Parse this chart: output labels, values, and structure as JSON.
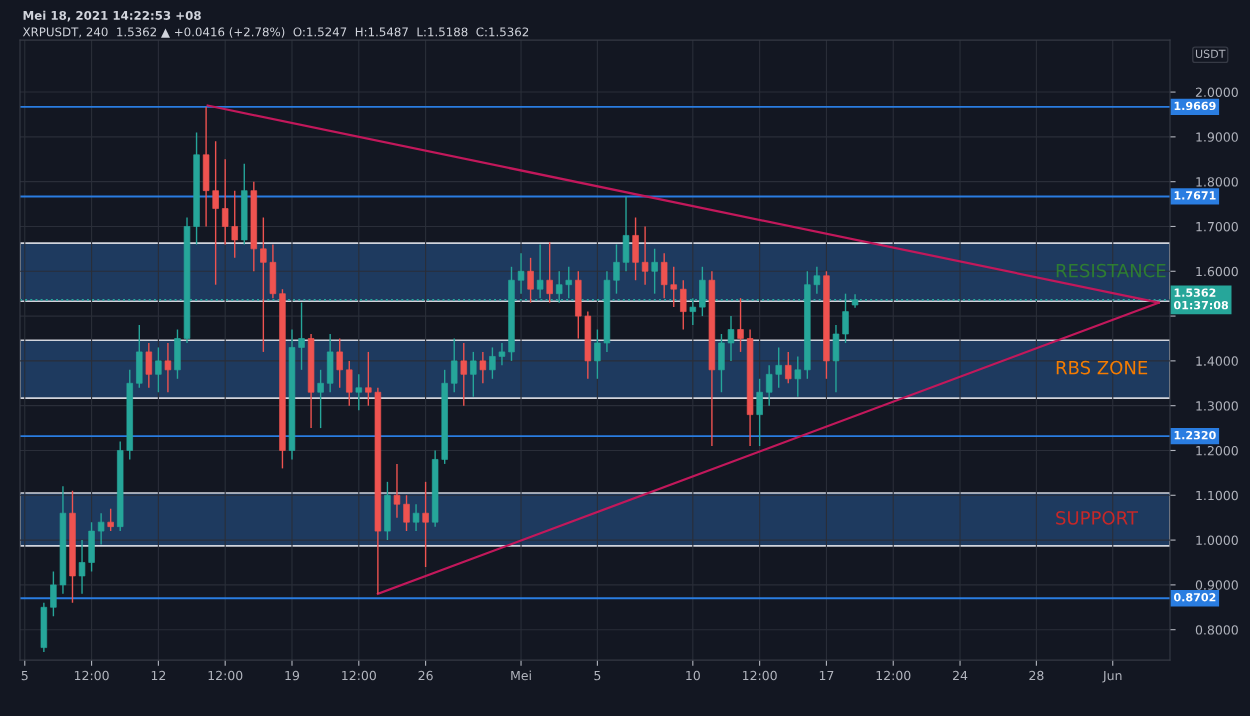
{
  "chart_data": {
    "type": "candlestick",
    "title": "Mei 18, 2021 14:22:53 +08",
    "subtitle": "XRPUSDT, 240  1.5362 ▲ +0.0416 (+2.78%)  O:1.5247  H:1.5487  L:1.5188  C:1.5362",
    "ylabel": "USDT",
    "x": [
      "2021-04-06T00:00",
      "2021-04-06T12:00",
      "2021-04-07T00:00",
      "2021-04-07T12:00",
      "2021-04-08T00:00",
      "2021-04-08T12:00",
      "2021-04-09T00:00",
      "2021-04-09T12:00",
      "2021-04-10T00:00",
      "2021-04-10T12:00",
      "2021-04-11T00:00",
      "2021-04-11T12:00",
      "2021-04-12T00:00",
      "2021-04-12T12:00",
      "2021-04-13T00:00",
      "2021-04-13T12:00",
      "2021-04-14T00:00",
      "2021-04-14T12:00",
      "2021-04-15T00:00",
      "2021-04-15T12:00",
      "2021-04-16T00:00",
      "2021-04-16T12:00",
      "2021-04-17T00:00",
      "2021-04-17T12:00",
      "2021-04-18T00:00",
      "2021-04-18T12:00",
      "2021-04-19T00:00",
      "2021-04-19T12:00",
      "2021-04-20T00:00",
      "2021-04-20T12:00",
      "2021-04-21T00:00",
      "2021-04-21T12:00",
      "2021-04-22T00:00",
      "2021-04-22T12:00",
      "2021-04-23T00:00",
      "2021-04-23T12:00",
      "2021-04-24T00:00",
      "2021-04-24T12:00",
      "2021-04-25T00:00",
      "2021-04-25T12:00",
      "2021-04-26T00:00",
      "2021-04-26T12:00",
      "2021-04-27T00:00",
      "2021-04-27T12:00",
      "2021-04-28T00:00",
      "2021-04-28T12:00",
      "2021-04-29T00:00",
      "2021-04-29T12:00",
      "2021-04-30T00:00",
      "2021-04-30T12:00",
      "2021-05-01T00:00",
      "2021-05-01T12:00",
      "2021-05-02T00:00",
      "2021-05-02T12:00",
      "2021-05-03T00:00",
      "2021-05-03T12:00",
      "2021-05-04T00:00",
      "2021-05-04T12:00",
      "2021-05-05T00:00",
      "2021-05-05T12:00",
      "2021-05-06T00:00",
      "2021-05-06T12:00",
      "2021-05-07T00:00",
      "2021-05-07T12:00",
      "2021-05-08T00:00",
      "2021-05-08T12:00",
      "2021-05-09T00:00",
      "2021-05-09T12:00",
      "2021-05-10T00:00",
      "2021-05-10T12:00",
      "2021-05-11T00:00",
      "2021-05-11T12:00",
      "2021-05-12T00:00",
      "2021-05-12T12:00",
      "2021-05-13T00:00",
      "2021-05-13T12:00",
      "2021-05-14T00:00",
      "2021-05-14T12:00",
      "2021-05-15T00:00",
      "2021-05-15T12:00",
      "2021-05-16T00:00",
      "2021-05-16T12:00",
      "2021-05-17T00:00",
      "2021-05-17T12:00",
      "2021-05-18T00:00",
      "2021-05-18T12:00"
    ],
    "ohlc": [
      [
        0.76,
        0.86,
        0.75,
        0.85
      ],
      [
        0.85,
        0.93,
        0.83,
        0.9
      ],
      [
        0.9,
        1.12,
        0.88,
        1.06
      ],
      [
        1.06,
        1.11,
        0.86,
        0.92
      ],
      [
        0.92,
        1.0,
        0.88,
        0.95
      ],
      [
        0.95,
        1.04,
        0.93,
        1.02
      ],
      [
        1.02,
        1.06,
        0.99,
        1.04
      ],
      [
        1.04,
        1.07,
        1.02,
        1.03
      ],
      [
        1.03,
        1.22,
        1.02,
        1.2
      ],
      [
        1.2,
        1.38,
        1.18,
        1.35
      ],
      [
        1.35,
        1.48,
        1.34,
        1.42
      ],
      [
        1.42,
        1.44,
        1.34,
        1.37
      ],
      [
        1.37,
        1.43,
        1.33,
        1.4
      ],
      [
        1.4,
        1.44,
        1.33,
        1.38
      ],
      [
        1.38,
        1.47,
        1.36,
        1.45
      ],
      [
        1.45,
        1.72,
        1.44,
        1.7
      ],
      [
        1.7,
        1.91,
        1.66,
        1.86
      ],
      [
        1.86,
        1.9669,
        1.7,
        1.78
      ],
      [
        1.78,
        1.89,
        1.57,
        1.74
      ],
      [
        1.74,
        1.85,
        1.66,
        1.7
      ],
      [
        1.7,
        1.78,
        1.63,
        1.67
      ],
      [
        1.67,
        1.84,
        1.66,
        1.78
      ],
      [
        1.78,
        1.8,
        1.6,
        1.65
      ],
      [
        1.65,
        1.72,
        1.42,
        1.62
      ],
      [
        1.62,
        1.66,
        1.54,
        1.55
      ],
      [
        1.55,
        1.56,
        1.16,
        1.2
      ],
      [
        1.2,
        1.47,
        1.18,
        1.43
      ],
      [
        1.43,
        1.53,
        1.38,
        1.45
      ],
      [
        1.45,
        1.46,
        1.25,
        1.33
      ],
      [
        1.33,
        1.38,
        1.25,
        1.35
      ],
      [
        1.35,
        1.46,
        1.33,
        1.42
      ],
      [
        1.42,
        1.45,
        1.34,
        1.38
      ],
      [
        1.38,
        1.4,
        1.3,
        1.33
      ],
      [
        1.33,
        1.37,
        1.29,
        1.34
      ],
      [
        1.34,
        1.42,
        1.3,
        1.33
      ],
      [
        1.33,
        1.34,
        0.88,
        1.02
      ],
      [
        1.02,
        1.13,
        1.0,
        1.1
      ],
      [
        1.1,
        1.17,
        1.05,
        1.08
      ],
      [
        1.08,
        1.1,
        1.02,
        1.04
      ],
      [
        1.04,
        1.08,
        1.02,
        1.06
      ],
      [
        1.06,
        1.13,
        0.94,
        1.04
      ],
      [
        1.04,
        1.2,
        1.03,
        1.18
      ],
      [
        1.18,
        1.38,
        1.17,
        1.35
      ],
      [
        1.35,
        1.45,
        1.33,
        1.4
      ],
      [
        1.4,
        1.44,
        1.3,
        1.37
      ],
      [
        1.37,
        1.42,
        1.32,
        1.4
      ],
      [
        1.4,
        1.42,
        1.35,
        1.38
      ],
      [
        1.38,
        1.43,
        1.36,
        1.41
      ],
      [
        1.41,
        1.44,
        1.39,
        1.42
      ],
      [
        1.42,
        1.61,
        1.4,
        1.58
      ],
      [
        1.58,
        1.64,
        1.55,
        1.6
      ],
      [
        1.6,
        1.63,
        1.53,
        1.56
      ],
      [
        1.56,
        1.66,
        1.54,
        1.58
      ],
      [
        1.58,
        1.665,
        1.53,
        1.55
      ],
      [
        1.55,
        1.6,
        1.53,
        1.57
      ],
      [
        1.57,
        1.61,
        1.54,
        1.58
      ],
      [
        1.58,
        1.6,
        1.45,
        1.5
      ],
      [
        1.5,
        1.51,
        1.36,
        1.4
      ],
      [
        1.4,
        1.47,
        1.36,
        1.44
      ],
      [
        1.44,
        1.6,
        1.42,
        1.58
      ],
      [
        1.58,
        1.66,
        1.55,
        1.62
      ],
      [
        1.62,
        1.7671,
        1.6,
        1.68
      ],
      [
        1.68,
        1.72,
        1.58,
        1.62
      ],
      [
        1.62,
        1.7,
        1.57,
        1.6
      ],
      [
        1.6,
        1.65,
        1.55,
        1.62
      ],
      [
        1.62,
        1.64,
        1.54,
        1.57
      ],
      [
        1.57,
        1.61,
        1.52,
        1.56
      ],
      [
        1.56,
        1.58,
        1.47,
        1.51
      ],
      [
        1.51,
        1.54,
        1.48,
        1.52
      ],
      [
        1.52,
        1.61,
        1.5,
        1.58
      ],
      [
        1.58,
        1.6,
        1.21,
        1.38
      ],
      [
        1.38,
        1.46,
        1.33,
        1.44
      ],
      [
        1.44,
        1.5,
        1.4,
        1.47
      ],
      [
        1.47,
        1.54,
        1.42,
        1.45
      ],
      [
        1.45,
        1.47,
        1.21,
        1.28
      ],
      [
        1.28,
        1.36,
        1.21,
        1.33
      ],
      [
        1.33,
        1.39,
        1.3,
        1.37
      ],
      [
        1.37,
        1.43,
        1.34,
        1.39
      ],
      [
        1.39,
        1.42,
        1.35,
        1.36
      ],
      [
        1.36,
        1.41,
        1.32,
        1.38
      ],
      [
        1.38,
        1.6,
        1.36,
        1.57
      ],
      [
        1.57,
        1.61,
        1.55,
        1.59
      ],
      [
        1.59,
        1.6,
        1.36,
        1.4
      ],
      [
        1.4,
        1.48,
        1.33,
        1.46
      ],
      [
        1.46,
        1.55,
        1.44,
        1.51
      ],
      [
        1.5247,
        1.5487,
        1.5188,
        1.5362
      ]
    ],
    "colors": [
      "#26a69a",
      "#26a69a",
      "#26a69a",
      "#ef5350",
      "#26a69a",
      "#26a69a",
      "#26a69a",
      "#ef5350",
      "#26a69a",
      "#26a69a",
      "#26a69a",
      "#ef5350",
      "#26a69a",
      "#ef5350",
      "#26a69a",
      "#26a69a",
      "#26a69a",
      "#ef5350",
      "#ef5350",
      "#ef5350",
      "#ef5350",
      "#26a69a",
      "#ef5350",
      "#ef5350",
      "#ef5350",
      "#ef5350",
      "#26a69a",
      "#26a69a",
      "#ef5350",
      "#26a69a",
      "#26a69a",
      "#ef5350",
      "#ef5350",
      "#26a69a",
      "#ef5350",
      "#ef5350",
      "#26a69a",
      "#ef5350",
      "#ef5350",
      "#26a69a",
      "#ef5350",
      "#26a69a",
      "#26a69a",
      "#26a69a",
      "#ef5350",
      "#26a69a",
      "#ef5350",
      "#26a69a",
      "#26a69a",
      "#26a69a",
      "#26a69a",
      "#ef5350",
      "#26a69a",
      "#ef5350",
      "#26a69a",
      "#26a69a",
      "#ef5350",
      "#ef5350",
      "#26a69a",
      "#26a69a",
      "#26a69a",
      "#26a69a",
      "#ef5350",
      "#ef5350",
      "#26a69a",
      "#ef5350",
      "#ef5350",
      "#ef5350",
      "#26a69a",
      "#26a69a",
      "#ef5350",
      "#26a69a",
      "#26a69a",
      "#ef5350",
      "#ef5350",
      "#26a69a",
      "#26a69a",
      "#26a69a",
      "#ef5350",
      "#26a69a",
      "#26a69a",
      "#26a69a",
      "#ef5350",
      "#26a69a",
      "#26a69a",
      "#26a69a"
    ],
    "series": [
      {
        "type": "line",
        "color": "#c2185b",
        "x": [
          "2021-04-14T14:00",
          "2021-06-03T10:00"
        ],
        "values": [
          1.97,
          1.53
        ]
      },
      {
        "type": "line",
        "color": "#c2185b",
        "x": [
          "2021-04-23T12:00",
          "2021-06-03T10:00"
        ],
        "values": [
          0.88,
          1.53
        ]
      }
    ],
    "ref_lines": [
      {
        "axis": "y",
        "value": 1.9669,
        "label": "1.9669",
        "color": "#2a7de1",
        "line_style": "solid"
      },
      {
        "axis": "y",
        "value": 1.7671,
        "label": "1.7671",
        "color": "#2a7de1",
        "line_style": "solid"
      },
      {
        "axis": "y",
        "value": 1.232,
        "label": "1.2320",
        "color": "#2a7de1",
        "line_style": "solid"
      },
      {
        "axis": "y",
        "value": 0.8702,
        "label": "0.8702",
        "color": "#2a7de1",
        "line_style": "solid"
      },
      {
        "axis": "y",
        "value": 1.5362,
        "label": "1.5362\n01:37:08",
        "color": "#26a69a",
        "line_style": "dotted"
      }
    ],
    "bands": [
      {
        "axis": "y",
        "from": 1.533,
        "to": 1.663,
        "label": "RESISTANCE",
        "color": "#1e3a5f"
      },
      {
        "axis": "y",
        "from": 1.317,
        "to": 1.446,
        "label": "RBS ZONE",
        "color": "#1e3a5f"
      },
      {
        "axis": "y",
        "from": 0.987,
        "to": 1.105,
        "label": "SUPPORT",
        "color": "#1e3a5f"
      }
    ],
    "xlim": [
      "2021-04-04T18:00",
      "2021-06-04T00:00"
    ],
    "xticks": [
      {
        "value": "2021-04-05",
        "label": "5"
      },
      {
        "value": "2021-04-08T12:00",
        "label": "12:00"
      },
      {
        "value": "2021-04-12",
        "label": "12"
      },
      {
        "value": "2021-04-15T12:00",
        "label": "12:00"
      },
      {
        "value": "2021-04-19",
        "label": "19"
      },
      {
        "value": "2021-04-22T12:00",
        "label": "12:00"
      },
      {
        "value": "2021-04-26",
        "label": "26"
      },
      {
        "value": "2021-05-01",
        "label": "Mei"
      },
      {
        "value": "2021-05-05",
        "label": "5"
      },
      {
        "value": "2021-05-10",
        "label": "10"
      },
      {
        "value": "2021-05-13T12:00",
        "label": "12:00"
      },
      {
        "value": "2021-05-17",
        "label": "17"
      },
      {
        "value": "2021-05-20T12:00",
        "label": "12:00"
      },
      {
        "value": "2021-05-24",
        "label": "24"
      },
      {
        "value": "2021-05-28",
        "label": "28"
      },
      {
        "value": "2021-06-01",
        "label": "Jun"
      }
    ],
    "ylim": [
      0.732,
      2.116
    ],
    "yticks": [
      {
        "value": 0.8,
        "label": "0.8000"
      },
      {
        "value": 0.9,
        "label": "0.9000"
      },
      {
        "value": 1.0,
        "label": "1.0000"
      },
      {
        "value": 1.1,
        "label": "1.1000"
      },
      {
        "value": 1.2,
        "label": "1.2000"
      },
      {
        "value": 1.3,
        "label": "1.3000"
      },
      {
        "value": 1.4,
        "label": "1.4000"
      },
      {
        "value": 1.5,
        "label": null
      },
      {
        "value": 1.6,
        "label": "1.6000"
      },
      {
        "value": 1.7,
        "label": "1.7000"
      },
      {
        "value": 1.8,
        "label": "1.8000"
      },
      {
        "value": 1.9,
        "label": "1.9000"
      },
      {
        "value": 2.0,
        "label": "2.0000"
      }
    ],
    "grid": true
  }
}
